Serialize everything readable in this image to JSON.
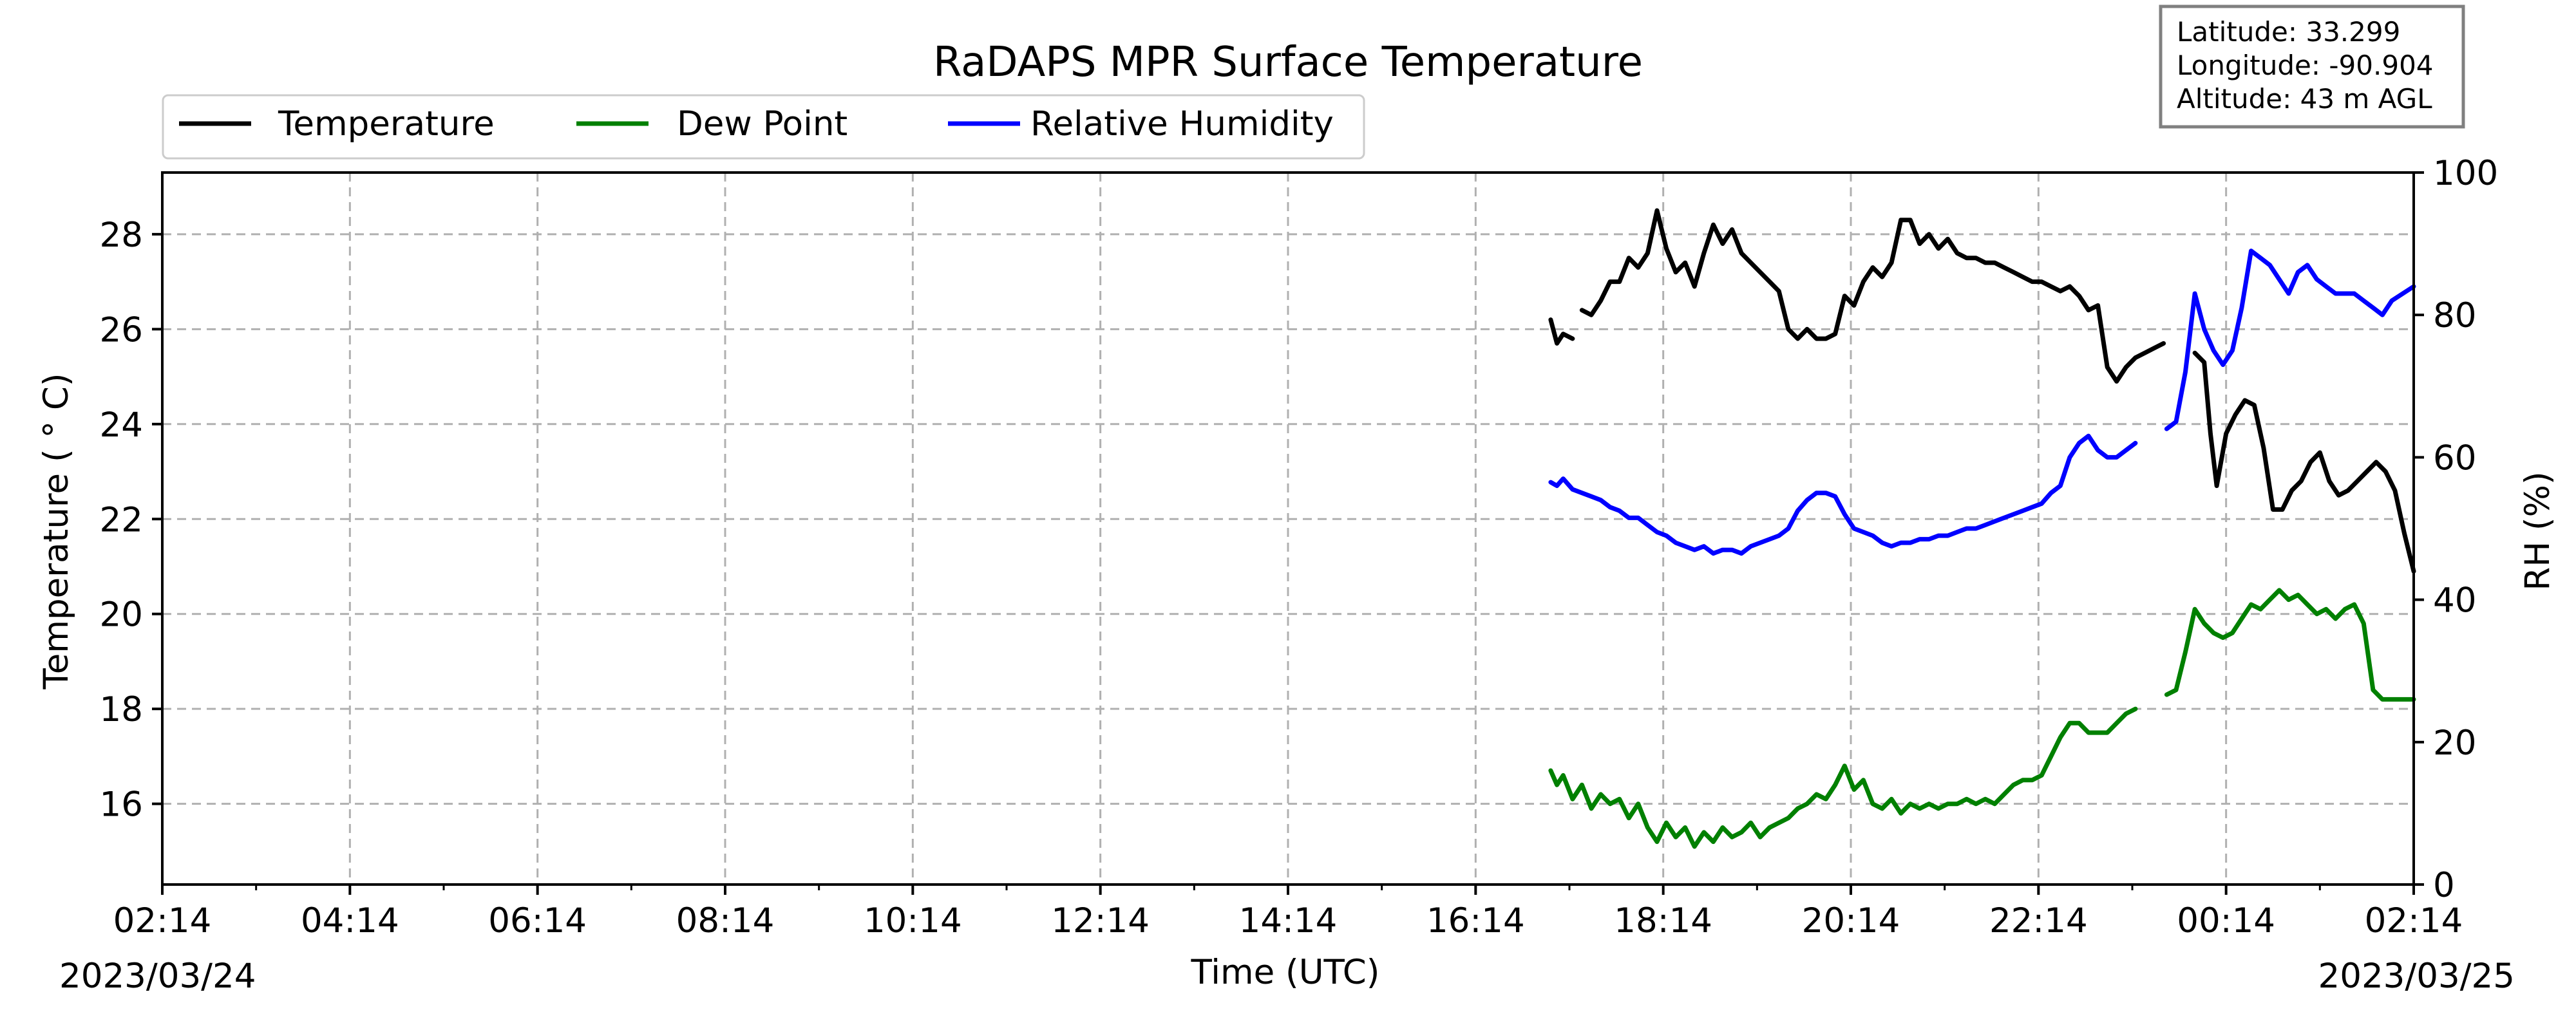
{
  "chart_data": {
    "type": "line",
    "title": "RaDAPS MPR Surface Temperature",
    "xlabel": "Time (UTC)",
    "ylabel_left": "Temperature ( ° C)",
    "ylabel_right": "RH (%)",
    "start_date_label": "2023/03/24",
    "end_date_label": "2023/03/25",
    "x_range": [
      "2023-03-24 02:14",
      "2023-03-25 02:14"
    ],
    "x_tick_labels": [
      "02:14",
      "04:14",
      "06:14",
      "08:14",
      "10:14",
      "12:14",
      "14:14",
      "16:14",
      "18:14",
      "20:14",
      "22:14",
      "00:14",
      "02:14"
    ],
    "ylim_left": [
      14.3,
      29.3
    ],
    "yticks_left": [
      "16",
      "18",
      "20",
      "22",
      "24",
      "26",
      "28"
    ],
    "ylim_right": [
      0,
      100
    ],
    "yticks_right": [
      "0",
      "20",
      "40",
      "60",
      "80",
      "100"
    ],
    "grid": true,
    "legend_position": "top-left",
    "info_box": {
      "lines": [
        "Latitude: 33.299",
        "Longitude: -90.904",
        "Altitude: 43 m AGL"
      ]
    },
    "series": [
      {
        "name": "Temperature",
        "color": "#000000",
        "axis": "left",
        "points": [
          [
            "17:02",
            26.2
          ],
          [
            "17:06",
            25.7
          ],
          [
            "17:10",
            25.9
          ],
          [
            "17:16",
            25.8
          ],
          null,
          [
            "17:22",
            26.4
          ],
          [
            "17:28",
            26.3
          ],
          [
            "17:34",
            26.6
          ],
          [
            "17:40",
            27.0
          ],
          [
            "17:46",
            27.0
          ],
          [
            "17:52",
            27.5
          ],
          [
            "17:58",
            27.3
          ],
          [
            "18:04",
            27.6
          ],
          [
            "18:10",
            28.5
          ],
          [
            "18:16",
            27.7
          ],
          [
            "18:22",
            27.2
          ],
          [
            "18:28",
            27.4
          ],
          [
            "18:34",
            26.9
          ],
          [
            "18:40",
            27.6
          ],
          [
            "18:46",
            28.2
          ],
          [
            "18:52",
            27.8
          ],
          [
            "18:58",
            28.1
          ],
          [
            "19:04",
            27.6
          ],
          [
            "19:10",
            27.4
          ],
          [
            "19:16",
            27.2
          ],
          [
            "19:22",
            27.0
          ],
          [
            "19:28",
            26.8
          ],
          [
            "19:34",
            26.0
          ],
          [
            "19:40",
            25.8
          ],
          [
            "19:46",
            26.0
          ],
          [
            "19:52",
            25.8
          ],
          [
            "19:58",
            25.8
          ],
          [
            "20:04",
            25.9
          ],
          [
            "20:10",
            26.7
          ],
          [
            "20:16",
            26.5
          ],
          [
            "20:22",
            27.0
          ],
          [
            "20:28",
            27.3
          ],
          [
            "20:34",
            27.1
          ],
          [
            "20:40",
            27.4
          ],
          [
            "20:46",
            28.3
          ],
          [
            "20:52",
            28.3
          ],
          [
            "20:58",
            27.8
          ],
          [
            "21:04",
            28.0
          ],
          [
            "21:10",
            27.7
          ],
          [
            "21:16",
            27.9
          ],
          [
            "21:22",
            27.6
          ],
          [
            "21:28",
            27.5
          ],
          [
            "21:34",
            27.5
          ],
          [
            "21:40",
            27.4
          ],
          [
            "21:46",
            27.4
          ],
          [
            "21:52",
            27.3
          ],
          [
            "21:58",
            27.2
          ],
          [
            "22:04",
            27.1
          ],
          [
            "22:10",
            27.0
          ],
          [
            "22:16",
            27.0
          ],
          [
            "22:22",
            26.9
          ],
          [
            "22:28",
            26.8
          ],
          [
            "22:34",
            26.9
          ],
          [
            "22:40",
            26.7
          ],
          [
            "22:46",
            26.4
          ],
          [
            "22:52",
            26.5
          ],
          [
            "22:58",
            25.2
          ],
          [
            "23:04",
            24.9
          ],
          [
            "23:10",
            25.2
          ],
          [
            "23:16",
            25.4
          ],
          [
            "23:22",
            25.5
          ],
          [
            "23:28",
            25.6
          ],
          [
            "23:34",
            25.7
          ],
          null,
          [
            "23:54",
            25.5
          ],
          [
            "24:00",
            25.3
          ],
          [
            "24:04",
            23.8
          ],
          [
            "24:08",
            22.7
          ],
          [
            "24:14",
            23.8
          ],
          [
            "24:20",
            24.2
          ],
          [
            "24:26",
            24.5
          ],
          [
            "24:32",
            24.4
          ],
          [
            "24:38",
            23.5
          ],
          [
            "24:44",
            22.2
          ],
          [
            "24:50",
            22.2
          ],
          [
            "24:56",
            22.6
          ],
          [
            "25:02",
            22.8
          ],
          [
            "25:08",
            23.2
          ],
          [
            "25:14",
            23.4
          ],
          [
            "25:20",
            22.8
          ],
          [
            "25:26",
            22.5
          ],
          [
            "25:32",
            22.6
          ],
          [
            "25:38",
            22.8
          ],
          [
            "25:44",
            23.0
          ],
          [
            "25:50",
            23.2
          ],
          [
            "25:56",
            23.0
          ],
          [
            "26:02",
            22.6
          ],
          [
            "26:08",
            21.7
          ],
          [
            "26:14",
            20.9
          ]
        ]
      },
      {
        "name": "Dew Point",
        "color": "#008000",
        "axis": "left",
        "points": [
          [
            "17:02",
            16.7
          ],
          [
            "17:06",
            16.4
          ],
          [
            "17:10",
            16.6
          ],
          [
            "17:16",
            16.1
          ],
          [
            "17:22",
            16.4
          ],
          [
            "17:28",
            15.9
          ],
          [
            "17:34",
            16.2
          ],
          [
            "17:40",
            16.0
          ],
          [
            "17:46",
            16.1
          ],
          [
            "17:52",
            15.7
          ],
          [
            "17:58",
            16.0
          ],
          [
            "18:04",
            15.5
          ],
          [
            "18:10",
            15.2
          ],
          [
            "18:16",
            15.6
          ],
          [
            "18:22",
            15.3
          ],
          [
            "18:28",
            15.5
          ],
          [
            "18:34",
            15.1
          ],
          [
            "18:40",
            15.4
          ],
          [
            "18:46",
            15.2
          ],
          [
            "18:52",
            15.5
          ],
          [
            "18:58",
            15.3
          ],
          [
            "19:04",
            15.4
          ],
          [
            "19:10",
            15.6
          ],
          [
            "19:16",
            15.3
          ],
          [
            "19:22",
            15.5
          ],
          [
            "19:28",
            15.6
          ],
          [
            "19:34",
            15.7
          ],
          [
            "19:40",
            15.9
          ],
          [
            "19:46",
            16.0
          ],
          [
            "19:52",
            16.2
          ],
          [
            "19:58",
            16.1
          ],
          [
            "20:04",
            16.4
          ],
          [
            "20:10",
            16.8
          ],
          [
            "20:16",
            16.3
          ],
          [
            "20:22",
            16.5
          ],
          [
            "20:28",
            16.0
          ],
          [
            "20:34",
            15.9
          ],
          [
            "20:40",
            16.1
          ],
          [
            "20:46",
            15.8
          ],
          [
            "20:52",
            16.0
          ],
          [
            "20:58",
            15.9
          ],
          [
            "21:04",
            16.0
          ],
          [
            "21:10",
            15.9
          ],
          [
            "21:16",
            16.0
          ],
          [
            "21:22",
            16.0
          ],
          [
            "21:28",
            16.1
          ],
          [
            "21:34",
            16.0
          ],
          [
            "21:40",
            16.1
          ],
          [
            "21:46",
            16.0
          ],
          [
            "21:52",
            16.2
          ],
          [
            "21:58",
            16.4
          ],
          [
            "22:04",
            16.5
          ],
          [
            "22:10",
            16.5
          ],
          [
            "22:16",
            16.6
          ],
          [
            "22:22",
            17.0
          ],
          [
            "22:28",
            17.4
          ],
          [
            "22:34",
            17.7
          ],
          [
            "22:40",
            17.7
          ],
          [
            "22:46",
            17.5
          ],
          [
            "22:52",
            17.5
          ],
          [
            "22:58",
            17.5
          ],
          [
            "23:04",
            17.7
          ],
          [
            "23:10",
            17.9
          ],
          [
            "23:16",
            18.0
          ],
          null,
          [
            "23:36",
            18.3
          ],
          [
            "23:42",
            18.4
          ],
          [
            "23:48",
            19.2
          ],
          [
            "23:54",
            20.1
          ],
          [
            "24:00",
            19.8
          ],
          [
            "24:06",
            19.6
          ],
          [
            "24:12",
            19.5
          ],
          [
            "24:18",
            19.6
          ],
          [
            "24:24",
            19.9
          ],
          [
            "24:30",
            20.2
          ],
          [
            "24:36",
            20.1
          ],
          [
            "24:42",
            20.3
          ],
          [
            "24:48",
            20.5
          ],
          [
            "24:54",
            20.3
          ],
          [
            "25:00",
            20.4
          ],
          [
            "25:06",
            20.2
          ],
          [
            "25:12",
            20.0
          ],
          [
            "25:18",
            20.1
          ],
          [
            "25:24",
            19.9
          ],
          [
            "25:30",
            20.1
          ],
          [
            "25:36",
            20.2
          ],
          [
            "25:42",
            19.8
          ],
          [
            "25:48",
            18.4
          ],
          [
            "25:54",
            18.2
          ],
          [
            "26:00",
            18.2
          ],
          [
            "26:14",
            18.2
          ]
        ]
      },
      {
        "name": "Relative Humidity",
        "color": "#0000ff",
        "axis": "right",
        "points": [
          [
            "17:02",
            56.5
          ],
          [
            "17:06",
            56.0
          ],
          [
            "17:10",
            57.0
          ],
          [
            "17:16",
            55.5
          ],
          [
            "17:22",
            55.0
          ],
          [
            "17:28",
            54.5
          ],
          [
            "17:34",
            54.0
          ],
          [
            "17:40",
            53.0
          ],
          [
            "17:46",
            52.5
          ],
          [
            "17:52",
            51.5
          ],
          [
            "17:58",
            51.5
          ],
          [
            "18:04",
            50.5
          ],
          [
            "18:10",
            49.5
          ],
          [
            "18:16",
            49.0
          ],
          [
            "18:22",
            48.0
          ],
          [
            "18:28",
            47.5
          ],
          [
            "18:34",
            47.0
          ],
          [
            "18:40",
            47.5
          ],
          [
            "18:46",
            46.5
          ],
          [
            "18:52",
            47.0
          ],
          [
            "18:58",
            47.0
          ],
          [
            "19:04",
            46.5
          ],
          [
            "19:10",
            47.5
          ],
          [
            "19:16",
            48.0
          ],
          [
            "19:22",
            48.5
          ],
          [
            "19:28",
            49.0
          ],
          [
            "19:34",
            50.0
          ],
          [
            "19:40",
            52.5
          ],
          [
            "19:46",
            54.0
          ],
          [
            "19:52",
            55.0
          ],
          [
            "19:58",
            55.0
          ],
          [
            "20:04",
            54.5
          ],
          [
            "20:10",
            52.0
          ],
          [
            "20:16",
            50.0
          ],
          [
            "20:22",
            49.5
          ],
          [
            "20:28",
            49.0
          ],
          [
            "20:34",
            48.0
          ],
          [
            "20:40",
            47.5
          ],
          [
            "20:46",
            48.0
          ],
          [
            "20:52",
            48.0
          ],
          [
            "20:58",
            48.5
          ],
          [
            "21:04",
            48.5
          ],
          [
            "21:10",
            49.0
          ],
          [
            "21:16",
            49.0
          ],
          [
            "21:22",
            49.5
          ],
          [
            "21:28",
            50.0
          ],
          [
            "21:34",
            50.0
          ],
          [
            "21:40",
            50.5
          ],
          [
            "21:46",
            51.0
          ],
          [
            "21:52",
            51.5
          ],
          [
            "21:58",
            52.0
          ],
          [
            "22:04",
            52.5
          ],
          [
            "22:10",
            53.0
          ],
          [
            "22:16",
            53.5
          ],
          [
            "22:22",
            55.0
          ],
          [
            "22:28",
            56.0
          ],
          [
            "22:34",
            60.0
          ],
          [
            "22:40",
            62.0
          ],
          [
            "22:46",
            63.0
          ],
          [
            "22:52",
            61.0
          ],
          [
            "22:58",
            60.0
          ],
          [
            "23:04",
            60.0
          ],
          [
            "23:10",
            61.0
          ],
          [
            "23:16",
            62.0
          ],
          null,
          [
            "23:36",
            64.0
          ],
          [
            "23:42",
            65.0
          ],
          [
            "23:48",
            72.0
          ],
          [
            "23:54",
            83.0
          ],
          [
            "24:00",
            78.0
          ],
          [
            "24:06",
            75.0
          ],
          [
            "24:12",
            73.0
          ],
          [
            "24:18",
            75.0
          ],
          [
            "24:24",
            81.0
          ],
          [
            "24:30",
            89.0
          ],
          [
            "24:36",
            88.0
          ],
          [
            "24:42",
            87.0
          ],
          [
            "24:48",
            85.0
          ],
          [
            "24:54",
            83.0
          ],
          [
            "25:00",
            86.0
          ],
          [
            "25:06",
            87.0
          ],
          [
            "25:12",
            85.0
          ],
          [
            "25:18",
            84.0
          ],
          [
            "25:24",
            83.0
          ],
          [
            "25:30",
            83.0
          ],
          [
            "25:36",
            83.0
          ],
          [
            "25:42",
            82.0
          ],
          [
            "25:48",
            81.0
          ],
          [
            "25:54",
            80.0
          ],
          [
            "26:00",
            82.0
          ],
          [
            "26:14",
            84.0
          ]
        ]
      }
    ]
  }
}
